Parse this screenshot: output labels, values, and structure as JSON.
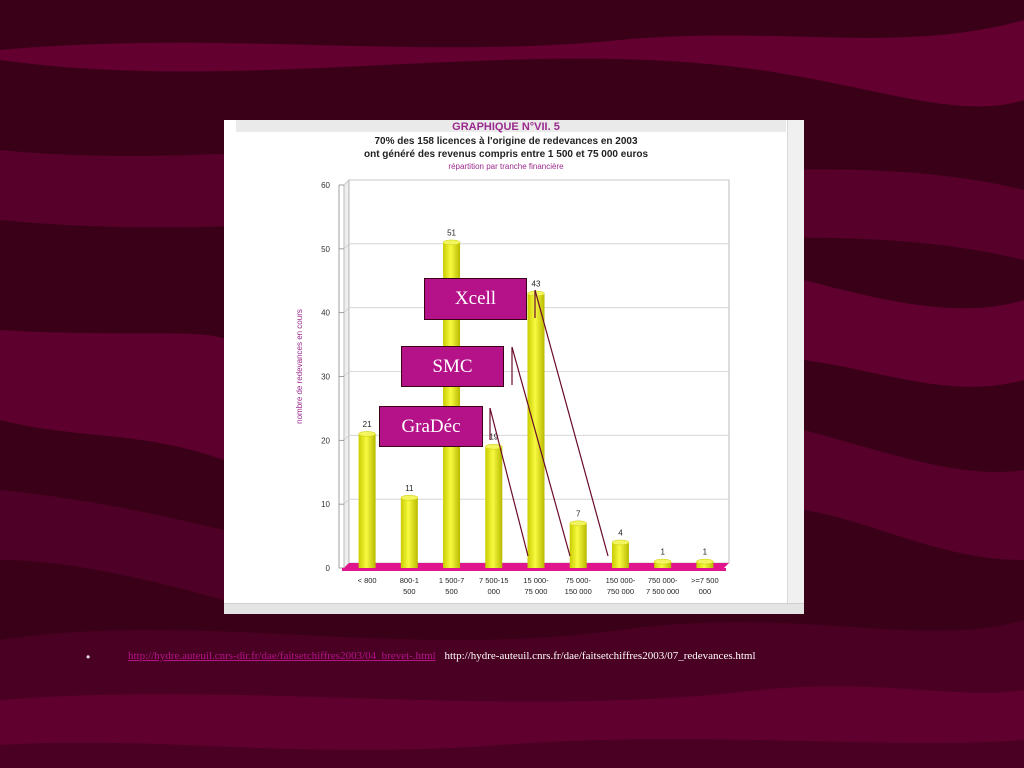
{
  "slide": {
    "links": [
      "http://hydre.auteuil.cnrs-dir.fr/dae/faitsetchiffres2003/04_brevet-.html",
      "http://hydre-auteuil.cnrs.fr/dae/faitsetchiffres2003/07_redevances.html"
    ],
    "bullet": "•"
  },
  "callouts": {
    "xcell": "Xcell",
    "smc": "SMC",
    "gradec": "GraDéc"
  },
  "colors": {
    "background": "#3a0018",
    "bar": "#e6ea10",
    "floor": "#e0148c",
    "callout": "#b5128a",
    "title": "#9a2a8e"
  },
  "chart_data": {
    "type": "bar",
    "title": "GRAPHIQUE N°VII. 5",
    "subtitle": [
      "70% des 158 licences à l'origine de redevances en 2003",
      "ont généré des revenus compris entre 1 500 et 75 000 euros"
    ],
    "note": "répartition par tranche financière",
    "ylabel": "nombre de redevances en cours",
    "xlabel": "",
    "ylim": [
      0,
      60
    ],
    "yticks": [
      0,
      10,
      20,
      30,
      40,
      50,
      60
    ],
    "grid": true,
    "categories": [
      [
        "< 800"
      ],
      [
        "800-1",
        "500"
      ],
      [
        "1 500-7",
        "500"
      ],
      [
        "7 500-15",
        "000"
      ],
      [
        "15 000-",
        "75 000"
      ],
      [
        "75 000-",
        "150 000"
      ],
      [
        "150 000-",
        "750 000"
      ],
      [
        "750 000-",
        "7 500 000"
      ],
      [
        ">=7 500",
        "000"
      ]
    ],
    "values": [
      21,
      11,
      51,
      19,
      43,
      7,
      4,
      1,
      1
    ]
  }
}
